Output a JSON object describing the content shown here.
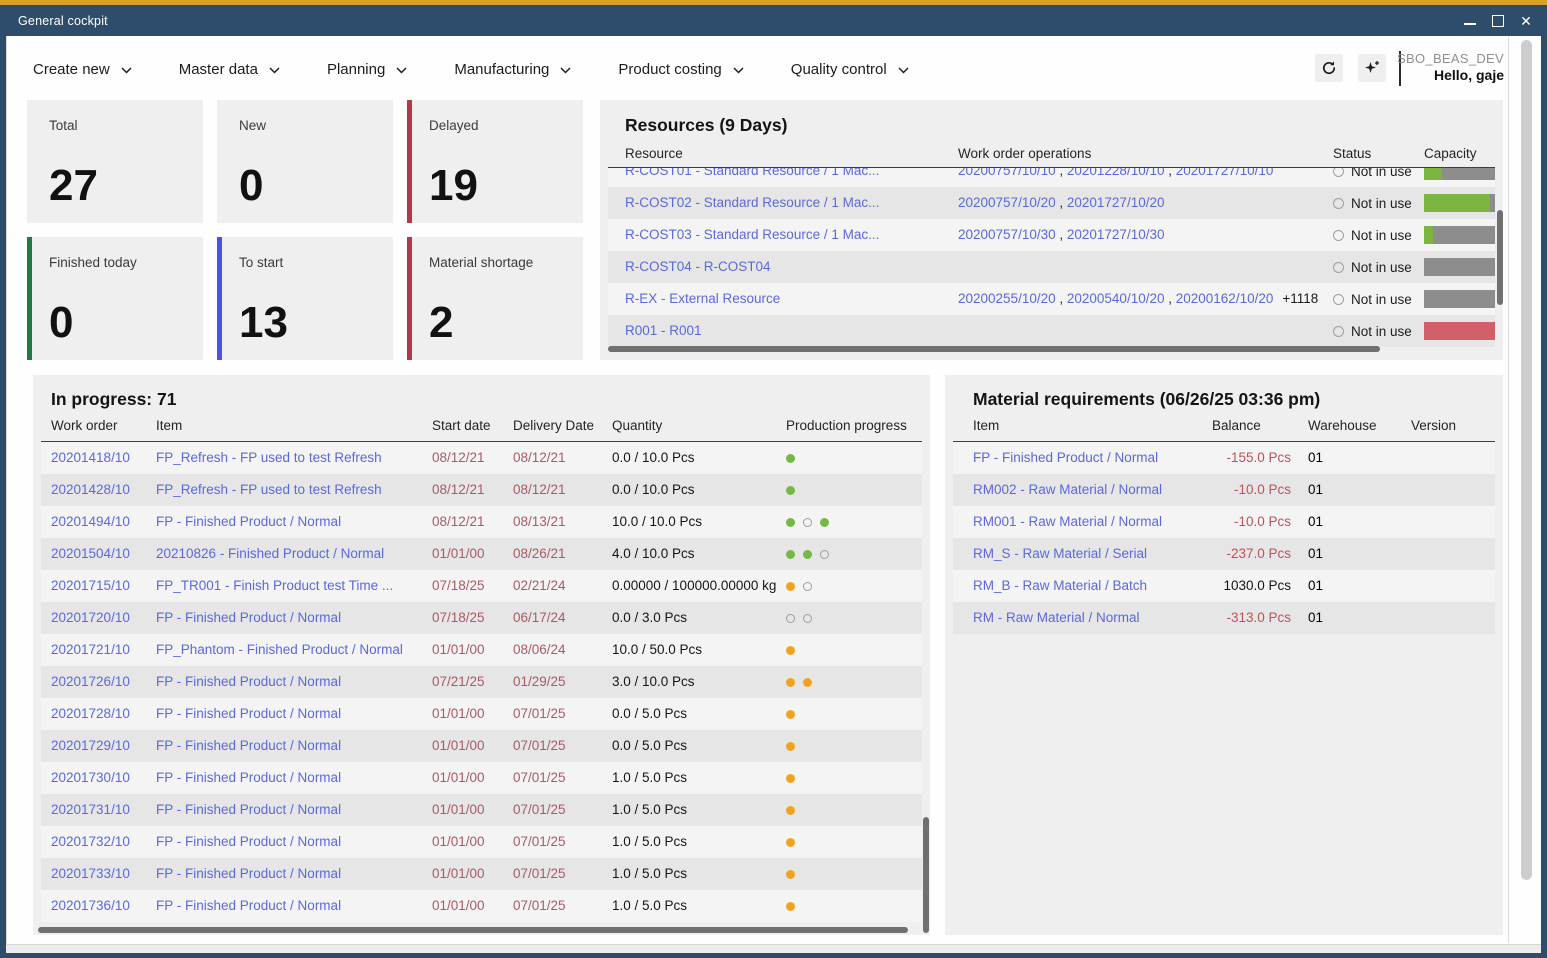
{
  "colors": {
    "titlebar": "#2e4d6b",
    "top_strip": "#d7a125",
    "link": "#5a68dd",
    "date_red": "#a85b63",
    "negative_red": "#bf505a",
    "dot_green": "#76b843",
    "dot_orange": "#f3a21f",
    "capacity_green": "#7cb440",
    "capacity_gray": "#8d8d8d",
    "capacity_red": "#d2606a"
  },
  "window": {
    "title": "General cockpit",
    "close_glyph": "✕"
  },
  "menu": {
    "items": [
      {
        "label": "Create new"
      },
      {
        "label": "Master data"
      },
      {
        "label": "Planning"
      },
      {
        "label": "Manufacturing"
      },
      {
        "label": "Product costing"
      },
      {
        "label": "Quality control"
      }
    ]
  },
  "header_right": {
    "database": "SBO_BEAS_DEV",
    "greeting": "Hello, gaje"
  },
  "kpis": [
    {
      "label": "Total",
      "value": "27",
      "accent": null
    },
    {
      "label": "New",
      "value": "0",
      "accent": null
    },
    {
      "label": "Delayed",
      "value": "19",
      "accent": "#b2394a"
    },
    {
      "label": "Finished today",
      "value": "0",
      "accent": "#1d7a42"
    },
    {
      "label": "To start",
      "value": "13",
      "accent": "#4a52e8"
    },
    {
      "label": "Material shortage",
      "value": "2",
      "accent": "#b2394a"
    }
  ],
  "resources": {
    "title": "Resources (9 Days)",
    "columns": {
      "resource": "Resource",
      "operations": "Work order operations",
      "status": "Status",
      "capacity": "Capacity"
    },
    "rows": [
      {
        "clipped": true,
        "resource": "R-COST01 - Standard Resource / 1 Mac...",
        "operations": [
          "20200757/10/10",
          "20201228/10/10",
          "20201727/10/10"
        ],
        "more": "",
        "status": "Not in use",
        "capacity": [
          {
            "color": "green",
            "pct": 25
          },
          {
            "color": "gray",
            "pct": 75
          }
        ]
      },
      {
        "resource": "R-COST02 - Standard Resource / 1 Mac...",
        "operations": [
          "20200757/10/20",
          "20201727/10/20"
        ],
        "more": "",
        "status": "Not in use",
        "capacity": [
          {
            "color": "green",
            "pct": 93
          },
          {
            "color": "gray",
            "pct": 7
          }
        ]
      },
      {
        "resource": "R-COST03 - Standard Resource / 1 Mac...",
        "operations": [
          "20200757/10/30",
          "20201727/10/30"
        ],
        "more": "",
        "status": "Not in use",
        "capacity": [
          {
            "color": "green",
            "pct": 12
          },
          {
            "color": "gray",
            "pct": 88
          }
        ]
      },
      {
        "resource": "R-COST04 - R-COST04",
        "operations": [],
        "more": "",
        "status": "Not in use",
        "capacity": [
          {
            "color": "gray",
            "pct": 100
          }
        ]
      },
      {
        "resource": "R-EX - External Resource",
        "operations": [
          "20200255/10/20",
          "20200540/10/20",
          "20200162/10/20"
        ],
        "more": "+1118",
        "status": "Not in use",
        "capacity": [
          {
            "color": "gray",
            "pct": 100
          }
        ]
      },
      {
        "resource": "R001 - R001",
        "operations": [],
        "more": "",
        "status": "Not in use",
        "capacity": [
          {
            "color": "red",
            "pct": 100
          }
        ]
      }
    ]
  },
  "in_progress": {
    "title": "In progress: 71",
    "columns": {
      "work_order": "Work order",
      "item": "Item",
      "start_date": "Start date",
      "delivery_date": "Delivery Date",
      "quantity": "Quantity",
      "progress": "Production progress"
    },
    "rows": [
      {
        "work_order": "20201418/10",
        "item": "FP_Refresh - FP used to test Refresh",
        "start_date": "08/12/21",
        "delivery_date": "08/12/21",
        "quantity": "0.0 / 10.0 Pcs",
        "progress": [
          "green"
        ]
      },
      {
        "work_order": "20201428/10",
        "item": "FP_Refresh - FP used to test Refresh",
        "start_date": "08/12/21",
        "delivery_date": "08/12/21",
        "quantity": "0.0 / 10.0 Pcs",
        "progress": [
          "green"
        ]
      },
      {
        "work_order": "20201494/10",
        "item": "FP - Finished Product / Normal",
        "start_date": "08/12/21",
        "delivery_date": "08/13/21",
        "quantity": "10.0 / 10.0 Pcs",
        "progress": [
          "green",
          "hollow",
          "green"
        ]
      },
      {
        "work_order": "20201504/10",
        "item": "20210826 - Finished Product / Normal",
        "start_date": "01/01/00",
        "delivery_date": "08/26/21",
        "quantity": "4.0 / 10.0 Pcs",
        "progress": [
          "green",
          "green",
          "hollow"
        ]
      },
      {
        "work_order": "20201715/10",
        "item": "FP_TR001 - Finish Product test Time ...",
        "start_date": "07/18/25",
        "delivery_date": "02/21/24",
        "quantity": "0.00000 / 100000.00000 kg",
        "progress": [
          "orange",
          "hollow"
        ]
      },
      {
        "work_order": "20201720/10",
        "item": "FP - Finished Product / Normal",
        "start_date": "07/18/25",
        "delivery_date": "06/17/24",
        "quantity": "0.0 / 3.0 Pcs",
        "progress": [
          "hollow",
          "hollow"
        ]
      },
      {
        "work_order": "20201721/10",
        "item": "FP_Phantom - Finished Product / Normal",
        "start_date": "01/01/00",
        "delivery_date": "08/06/24",
        "quantity": "10.0 / 50.0 Pcs",
        "progress": [
          "orange"
        ]
      },
      {
        "work_order": "20201726/10",
        "item": "FP - Finished Product / Normal",
        "start_date": "07/21/25",
        "delivery_date": "01/29/25",
        "quantity": "3.0 / 10.0 Pcs",
        "progress": [
          "orange",
          "orange"
        ]
      },
      {
        "work_order": "20201728/10",
        "item": "FP - Finished Product / Normal",
        "start_date": "01/01/00",
        "delivery_date": "07/01/25",
        "quantity": "0.0 / 5.0 Pcs",
        "progress": [
          "orange"
        ]
      },
      {
        "work_order": "20201729/10",
        "item": "FP - Finished Product / Normal",
        "start_date": "01/01/00",
        "delivery_date": "07/01/25",
        "quantity": "0.0 / 5.0 Pcs",
        "progress": [
          "orange"
        ]
      },
      {
        "work_order": "20201730/10",
        "item": "FP - Finished Product / Normal",
        "start_date": "01/01/00",
        "delivery_date": "07/01/25",
        "quantity": "1.0 / 5.0 Pcs",
        "progress": [
          "orange"
        ]
      },
      {
        "work_order": "20201731/10",
        "item": "FP - Finished Product / Normal",
        "start_date": "01/01/00",
        "delivery_date": "07/01/25",
        "quantity": "1.0 / 5.0 Pcs",
        "progress": [
          "orange"
        ]
      },
      {
        "work_order": "20201732/10",
        "item": "FP - Finished Product / Normal",
        "start_date": "01/01/00",
        "delivery_date": "07/01/25",
        "quantity": "1.0 / 5.0 Pcs",
        "progress": [
          "orange"
        ]
      },
      {
        "work_order": "20201733/10",
        "item": "FP - Finished Product / Normal",
        "start_date": "01/01/00",
        "delivery_date": "07/01/25",
        "quantity": "1.0 / 5.0 Pcs",
        "progress": [
          "orange"
        ]
      },
      {
        "work_order": "20201736/10",
        "item": "FP - Finished Product / Normal",
        "start_date": "01/01/00",
        "delivery_date": "07/01/25",
        "quantity": "1.0 / 5.0 Pcs",
        "progress": [
          "orange"
        ]
      }
    ]
  },
  "materials": {
    "title": "Material requirements (06/26/25 03:36 pm)",
    "columns": {
      "item": "Item",
      "balance": "Balance",
      "warehouse": "Warehouse",
      "version": "Version"
    },
    "rows": [
      {
        "item": "FP - Finished Product / Normal",
        "balance": "-155.0 Pcs",
        "negative": true,
        "warehouse": "01",
        "version": ""
      },
      {
        "item": "RM002 - Raw Material / Normal",
        "balance": "-10.0 Pcs",
        "negative": true,
        "warehouse": "01",
        "version": ""
      },
      {
        "item": "RM001 - Raw Material / Normal",
        "balance": "-10.0 Pcs",
        "negative": true,
        "warehouse": "01",
        "version": ""
      },
      {
        "item": "RM_S - Raw Material / Serial",
        "balance": "-237.0 Pcs",
        "negative": true,
        "warehouse": "01",
        "version": ""
      },
      {
        "item": "RM_B - Raw Material / Batch",
        "balance": "1030.0 Pcs",
        "negative": false,
        "warehouse": "01",
        "version": ""
      },
      {
        "item": "RM - Raw Material / Normal",
        "balance": "-313.0 Pcs",
        "negative": true,
        "warehouse": "01",
        "version": ""
      }
    ]
  }
}
